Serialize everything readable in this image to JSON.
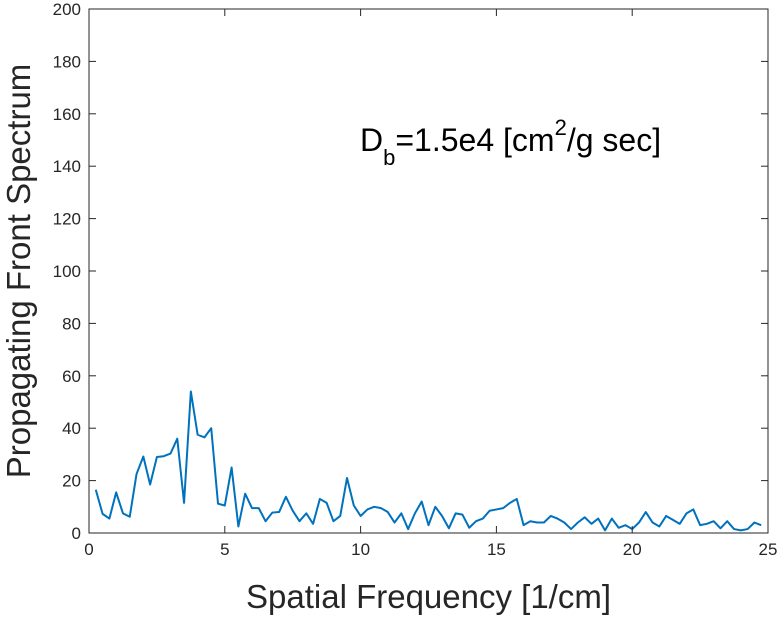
{
  "chart_data": {
    "type": "line",
    "xlabel": "Spatial Frequency [1/cm]",
    "ylabel": "Propagating Front Spectrum",
    "xlim": [
      0,
      25
    ],
    "ylim": [
      0,
      200
    ],
    "xticks": [
      "0",
      "5",
      "10",
      "15",
      "20",
      "25"
    ],
    "yticks": [
      "0",
      "20",
      "40",
      "60",
      "80",
      "100",
      "120",
      "140",
      "160",
      "180",
      "200"
    ],
    "grid": false,
    "annotation": {
      "base": "D",
      "subscript": "b",
      "middle": "=1.5e4 [cm",
      "superscript": "2",
      "tail": "/g sec]"
    },
    "series_color": "#0072BD",
    "x": [
      0.25,
      0.5,
      0.75,
      1.0,
      1.25,
      1.5,
      1.75,
      2.0,
      2.25,
      2.5,
      2.75,
      3.0,
      3.25,
      3.5,
      3.75,
      4.0,
      4.25,
      4.5,
      4.75,
      5.0,
      5.25,
      5.5,
      5.75,
      6.0,
      6.25,
      6.5,
      6.75,
      7.0,
      7.25,
      7.5,
      7.75,
      8.0,
      8.25,
      8.5,
      8.75,
      9.0,
      9.25,
      9.5,
      9.75,
      10.0,
      10.25,
      10.5,
      10.75,
      11.0,
      11.25,
      11.5,
      11.75,
      12.0,
      12.25,
      12.5,
      12.75,
      13.0,
      13.25,
      13.5,
      13.75,
      14.0,
      14.25,
      14.5,
      14.75,
      15.0,
      15.25,
      15.5,
      15.75,
      16.0,
      16.25,
      16.5,
      16.75,
      17.0,
      17.25,
      17.5,
      17.75,
      18.0,
      18.25,
      18.5,
      18.75,
      19.0,
      19.25,
      19.5,
      19.75,
      20.0,
      20.25,
      20.5,
      20.75,
      21.0,
      21.25,
      21.5,
      21.75,
      22.0,
      22.25,
      22.5,
      22.75,
      23.0,
      23.25,
      23.5,
      23.75,
      24.0,
      24.25,
      24.5,
      24.75
    ],
    "y": [
      16.5,
      7.3,
      5.5,
      15.5,
      7.5,
      6.2,
      22.5,
      29.2,
      18.5,
      29.0,
      29.3,
      30.3,
      36.0,
      11.5,
      54.0,
      37.5,
      36.5,
      40.0,
      11.2,
      10.5,
      25.0,
      2.5,
      15.0,
      9.5,
      9.5,
      4.5,
      7.8,
      8.0,
      13.8,
      8.5,
      4.5,
      7.5,
      3.5,
      13.0,
      11.5,
      4.5,
      6.5,
      21.0,
      10.5,
      6.5,
      9.0,
      10.0,
      9.5,
      8.0,
      4.0,
      7.5,
      1.5,
      7.5,
      12.0,
      3.0,
      10.0,
      6.5,
      1.8,
      7.5,
      7.0,
      2.0,
      4.5,
      5.5,
      8.5,
      9.0,
      9.5,
      11.5,
      13.0,
      3.0,
      4.5,
      4.0,
      4.0,
      6.5,
      5.5,
      4.0,
      1.5,
      4.0,
      6.0,
      3.5,
      5.5,
      1.0,
      5.5,
      2.0,
      3.0,
      1.5,
      4.0,
      8.0,
      4.0,
      2.5,
      6.5,
      5.0,
      3.5,
      7.5,
      9.0,
      3.0,
      3.5,
      4.5,
      1.8,
      4.5,
      1.5,
      1.0,
      1.5,
      4.0,
      3.0
    ]
  }
}
